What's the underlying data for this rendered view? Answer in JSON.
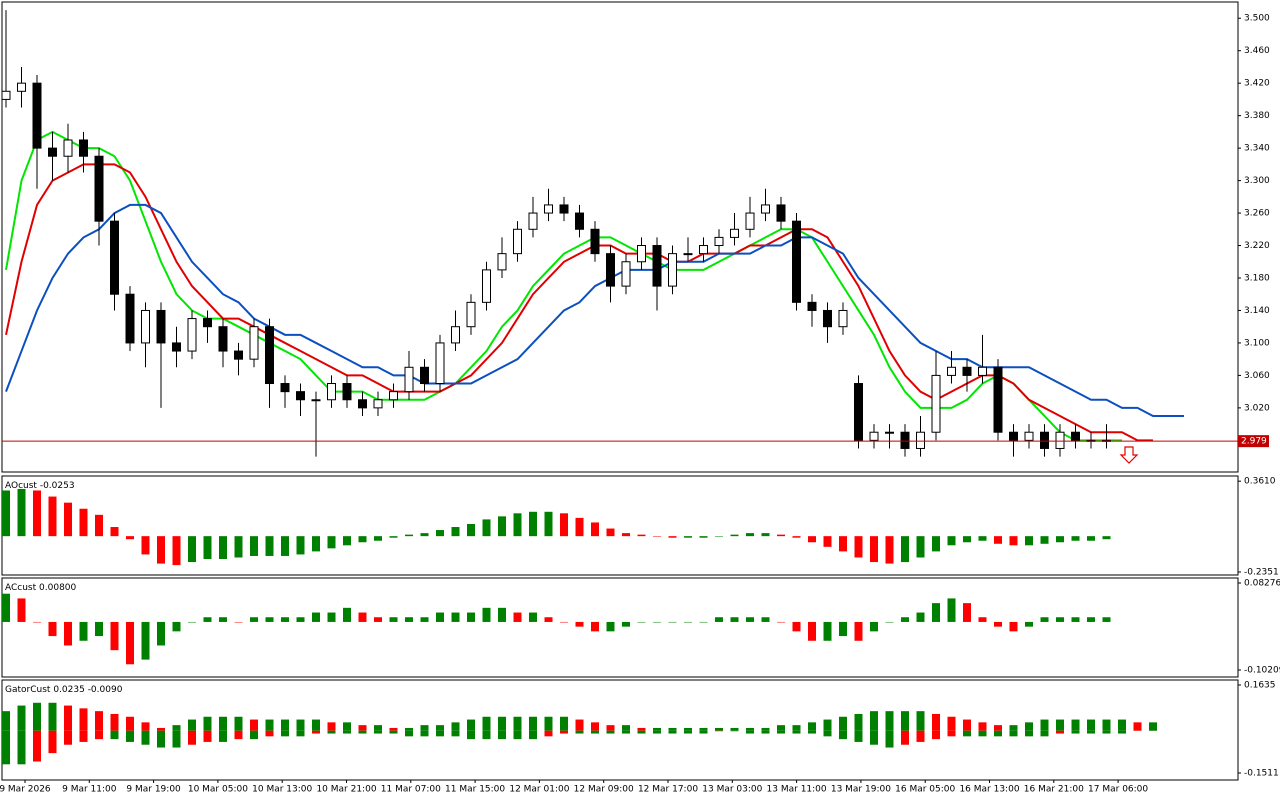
{
  "chart_data": [
    {
      "type": "candlestick",
      "ylim": [
        2.941,
        3.52
      ],
      "yticks": [
        {
          "value": 3.5,
          "label": "3.500"
        },
        {
          "value": 3.46,
          "label": "3.460"
        },
        {
          "value": 3.42,
          "label": "3.420"
        },
        {
          "value": 3.38,
          "label": "3.380"
        },
        {
          "value": 3.34,
          "label": "3.340"
        },
        {
          "value": 3.3,
          "label": "3.300"
        },
        {
          "value": 3.26,
          "label": "3.260"
        },
        {
          "value": 3.22,
          "label": "3.220"
        },
        {
          "value": 3.18,
          "label": "3.180"
        },
        {
          "value": 3.14,
          "label": "3.140"
        },
        {
          "value": 3.1,
          "label": "3.100"
        },
        {
          "value": 3.06,
          "label": "3.060"
        },
        {
          "value": 3.02,
          "label": "3.020"
        }
      ],
      "x_labels": [
        "9 Mar 2026",
        "9 Mar 11:00",
        "9 Mar 19:00",
        "10 Mar 05:00",
        "10 Mar 13:00",
        "10 Mar 21:00",
        "11 Mar 07:00",
        "11 Mar 15:00",
        "12 Mar 01:00",
        "12 Mar 09:00",
        "12 Mar 17:00",
        "13 Mar 03:00",
        "13 Mar 11:00",
        "13 Mar 19:00",
        "16 Mar 05:00",
        "16 Mar 13:00",
        "16 Mar 21:00",
        "17 Mar 06:00"
      ],
      "up_color": "#ffffff",
      "down_color": "#000000",
      "open": [
        3.4,
        3.41,
        3.42,
        3.34,
        3.33,
        3.35,
        3.33,
        3.25,
        3.16,
        3.1,
        3.14,
        3.1,
        3.09,
        3.13,
        3.12,
        3.09,
        3.08,
        3.12,
        3.05,
        3.04,
        3.03,
        3.03,
        3.05,
        3.03,
        3.02,
        3.03,
        3.04,
        3.07,
        3.05,
        3.1,
        3.12,
        3.15,
        3.19,
        3.21,
        3.24,
        3.26,
        3.27,
        3.26,
        3.24,
        3.21,
        3.17,
        3.2,
        3.22,
        3.17,
        3.21,
        3.21,
        3.22,
        3.23,
        3.24,
        3.26,
        3.27,
        3.25,
        3.15,
        3.14,
        3.12,
        3.05,
        2.98,
        2.99,
        2.99,
        2.97,
        2.99,
        3.06,
        3.07,
        3.06,
        3.07,
        2.99,
        2.98,
        2.99,
        2.97,
        2.99,
        2.98,
        2.98,
        null,
        null,
        null,
        null,
        null
      ],
      "high": [
        3.51,
        3.44,
        3.43,
        3.36,
        3.37,
        3.36,
        3.34,
        3.26,
        3.17,
        3.15,
        3.15,
        3.12,
        3.14,
        3.14,
        3.13,
        3.1,
        3.13,
        3.13,
        3.06,
        3.05,
        3.04,
        3.06,
        3.06,
        3.04,
        3.04,
        3.05,
        3.09,
        3.08,
        3.11,
        3.14,
        3.16,
        3.2,
        3.23,
        3.25,
        3.28,
        3.29,
        3.28,
        3.27,
        3.25,
        3.22,
        3.21,
        3.23,
        3.23,
        3.22,
        3.23,
        3.23,
        3.24,
        3.26,
        3.28,
        3.29,
        3.28,
        3.26,
        3.16,
        3.15,
        3.15,
        3.06,
        3.0,
        3.0,
        3.0,
        3.01,
        3.09,
        3.09,
        3.08,
        3.11,
        3.08,
        3.0,
        3.0,
        3.0,
        3.0,
        3.0,
        2.99,
        3.0,
        null,
        null,
        null,
        null,
        null
      ],
      "low": [
        3.39,
        3.39,
        3.29,
        3.3,
        3.31,
        3.31,
        3.22,
        3.14,
        3.09,
        3.07,
        3.02,
        3.07,
        3.08,
        3.1,
        3.07,
        3.06,
        3.07,
        3.02,
        3.02,
        3.01,
        2.96,
        3.02,
        3.02,
        3.01,
        3.01,
        3.02,
        3.03,
        3.04,
        3.04,
        3.09,
        3.11,
        3.14,
        3.18,
        3.2,
        3.23,
        3.25,
        3.25,
        3.23,
        3.2,
        3.15,
        3.16,
        3.19,
        3.14,
        3.16,
        3.2,
        3.2,
        3.21,
        3.22,
        3.23,
        3.25,
        3.24,
        3.14,
        3.12,
        3.1,
        3.11,
        2.97,
        2.97,
        2.97,
        2.96,
        2.96,
        2.98,
        3.05,
        3.04,
        3.05,
        2.98,
        2.96,
        2.97,
        2.96,
        2.96,
        2.97,
        2.97,
        2.97,
        null,
        null,
        null,
        null,
        null
      ],
      "close": [
        3.41,
        3.42,
        3.34,
        3.33,
        3.35,
        3.33,
        3.25,
        3.16,
        3.1,
        3.14,
        3.1,
        3.09,
        3.13,
        3.12,
        3.09,
        3.08,
        3.12,
        3.05,
        3.04,
        3.03,
        3.03,
        3.05,
        3.03,
        3.02,
        3.03,
        3.04,
        3.07,
        3.05,
        3.1,
        3.12,
        3.15,
        3.19,
        3.21,
        3.24,
        3.26,
        3.27,
        3.26,
        3.24,
        3.21,
        3.17,
        3.2,
        3.22,
        3.17,
        3.21,
        3.21,
        3.22,
        3.23,
        3.24,
        3.26,
        3.27,
        3.25,
        3.15,
        3.14,
        3.12,
        3.14,
        2.98,
        2.99,
        2.99,
        2.97,
        2.99,
        3.06,
        3.07,
        3.06,
        3.07,
        2.99,
        2.98,
        2.99,
        2.97,
        2.99,
        2.98,
        2.98,
        2.98,
        null,
        null,
        null,
        null,
        null
      ],
      "lines": [
        {
          "color": "#00e600",
          "values": [
            3.19,
            3.3,
            3.35,
            3.36,
            3.35,
            3.34,
            3.34,
            3.33,
            3.3,
            3.25,
            3.2,
            3.16,
            3.14,
            3.13,
            3.13,
            3.12,
            3.11,
            3.1,
            3.09,
            3.08,
            3.06,
            3.04,
            3.04,
            3.04,
            3.03,
            3.03,
            3.03,
            3.03,
            3.04,
            3.05,
            3.07,
            3.09,
            3.12,
            3.14,
            3.17,
            3.19,
            3.21,
            3.22,
            3.23,
            3.23,
            3.22,
            3.21,
            3.2,
            3.19,
            3.19,
            3.19,
            3.2,
            3.21,
            3.22,
            3.23,
            3.24,
            3.24,
            3.23,
            3.2,
            3.17,
            3.14,
            3.11,
            3.07,
            3.04,
            3.02,
            3.02,
            3.02,
            3.03,
            3.05,
            3.06,
            3.05,
            3.03,
            3.01,
            2.99,
            2.98,
            2.98,
            2.98,
            2.98,
            null,
            null,
            null,
            null
          ]
        },
        {
          "color": "#e00000",
          "values": [
            3.11,
            3.2,
            3.27,
            3.3,
            3.31,
            3.32,
            3.32,
            3.32,
            3.31,
            3.28,
            3.24,
            3.2,
            3.17,
            3.15,
            3.13,
            3.13,
            3.12,
            3.11,
            3.1,
            3.09,
            3.08,
            3.07,
            3.06,
            3.06,
            3.05,
            3.04,
            3.04,
            3.04,
            3.04,
            3.05,
            3.06,
            3.08,
            3.1,
            3.13,
            3.16,
            3.18,
            3.2,
            3.21,
            3.22,
            3.22,
            3.21,
            3.21,
            3.21,
            3.2,
            3.2,
            3.21,
            3.21,
            3.21,
            3.22,
            3.22,
            3.23,
            3.24,
            3.24,
            3.23,
            3.2,
            3.17,
            3.13,
            3.09,
            3.06,
            3.04,
            3.03,
            3.04,
            3.05,
            3.06,
            3.06,
            3.05,
            3.03,
            3.02,
            3.01,
            3.0,
            2.99,
            2.99,
            2.99,
            2.98,
            2.98,
            null,
            null
          ]
        },
        {
          "color": "#0b4fc0",
          "values": [
            3.04,
            3.09,
            3.14,
            3.18,
            3.21,
            3.23,
            3.24,
            3.26,
            3.27,
            3.27,
            3.26,
            3.23,
            3.2,
            3.18,
            3.16,
            3.15,
            3.13,
            3.12,
            3.11,
            3.11,
            3.1,
            3.09,
            3.08,
            3.07,
            3.07,
            3.06,
            3.06,
            3.05,
            3.05,
            3.05,
            3.05,
            3.06,
            3.07,
            3.08,
            3.1,
            3.12,
            3.14,
            3.15,
            3.17,
            3.18,
            3.19,
            3.19,
            3.19,
            3.2,
            3.2,
            3.2,
            3.21,
            3.21,
            3.21,
            3.22,
            3.22,
            3.23,
            3.23,
            3.22,
            3.21,
            3.18,
            3.16,
            3.14,
            3.12,
            3.1,
            3.09,
            3.08,
            3.08,
            3.07,
            3.07,
            3.07,
            3.07,
            3.06,
            3.05,
            3.04,
            3.03,
            3.03,
            3.02,
            3.02,
            3.01,
            3.01,
            3.01
          ]
        }
      ],
      "last_price": 2.979,
      "last_price_color": "#c00000"
    },
    {
      "type": "histogram",
      "title": "AOcust",
      "current_values": [
        -0.0253
      ],
      "ylim": [
        -0.255,
        0.395
      ],
      "yticks": [
        {
          "value": 0.361,
          "label": "0.3610"
        },
        -0.2351
      ],
      "up_color": "#008000",
      "down_color": "#ff0000",
      "series": [
        {
          "values": [
            0.3,
            0.31,
            0.3,
            0.26,
            0.22,
            0.18,
            0.14,
            0.06,
            -0.02,
            -0.12,
            -0.18,
            -0.19,
            -0.17,
            -0.15,
            -0.15,
            -0.14,
            -0.13,
            -0.13,
            -0.13,
            -0.12,
            -0.1,
            -0.08,
            -0.06,
            -0.04,
            -0.03,
            -0.01,
            0.01,
            0.02,
            0.04,
            0.06,
            0.08,
            0.11,
            0.13,
            0.15,
            0.16,
            0.16,
            0.15,
            0.12,
            0.09,
            0.05,
            0.02,
            0.01,
            0.0,
            -0.01,
            -0.01,
            -0.01,
            0.0,
            0.01,
            0.02,
            0.02,
            0.01,
            -0.01,
            -0.04,
            -0.07,
            -0.1,
            -0.14,
            -0.17,
            -0.18,
            -0.17,
            -0.14,
            -0.1,
            -0.06,
            -0.04,
            -0.03,
            -0.05,
            -0.06,
            -0.06,
            -0.05,
            -0.04,
            -0.03,
            -0.03,
            -0.02
          ]
        }
      ]
    },
    {
      "type": "histogram",
      "title": "ACcust",
      "current_values": [
        {
          "value": 0.008,
          "label": "0.00800"
        }
      ],
      "ylim": [
        -0.117,
        0.0934
      ],
      "yticks": [
        0.08276,
        -0.10209
      ],
      "up_color": "#008000",
      "down_color": "#ff0000",
      "series": [
        {
          "values": [
            0.06,
            0.05,
            0.0,
            -0.03,
            -0.05,
            -0.04,
            -0.03,
            -0.06,
            -0.09,
            -0.08,
            -0.05,
            -0.02,
            0.0,
            0.01,
            0.01,
            0.0,
            0.01,
            0.01,
            0.01,
            0.01,
            0.02,
            0.02,
            0.03,
            0.02,
            0.01,
            0.01,
            0.01,
            0.01,
            0.02,
            0.02,
            0.02,
            0.03,
            0.03,
            0.02,
            0.02,
            0.01,
            0.0,
            -0.01,
            -0.02,
            -0.02,
            -0.01,
            0.0,
            0.0,
            0.0,
            0.0,
            0.0,
            0.01,
            0.01,
            0.01,
            0.01,
            0.0,
            -0.02,
            -0.04,
            -0.04,
            -0.03,
            -0.04,
            -0.02,
            0.0,
            0.01,
            0.02,
            0.04,
            0.05,
            0.04,
            0.01,
            -0.01,
            -0.02,
            -0.01,
            0.01,
            0.01,
            0.01,
            0.01,
            0.01
          ]
        }
      ]
    },
    {
      "type": "gator",
      "title": "GatorCust",
      "current_values": [
        0.0235,
        {
          "value": -0.009,
          "label": "-0.0090"
        }
      ],
      "ylim": [
        -0.1761,
        0.1814
      ],
      "yticks": [
        0.1635,
        -0.1511
      ],
      "up_color": "#008000",
      "down_color": "#ff0000",
      "series": [
        {
          "values": [
            0.07,
            0.09,
            0.1,
            0.1,
            0.09,
            0.08,
            0.07,
            0.06,
            0.05,
            0.03,
            0.01,
            0.02,
            0.04,
            0.05,
            0.05,
            0.05,
            0.04,
            0.04,
            0.04,
            0.04,
            0.04,
            0.03,
            0.03,
            0.02,
            0.02,
            0.01,
            0.01,
            0.02,
            0.02,
            0.03,
            0.04,
            0.05,
            0.05,
            0.05,
            0.05,
            0.05,
            0.05,
            0.04,
            0.03,
            0.02,
            0.02,
            0.01,
            0.01,
            0.01,
            0.01,
            0.01,
            0.01,
            0.01,
            0.01,
            0.01,
            0.02,
            0.02,
            0.03,
            0.04,
            0.05,
            0.06,
            0.07,
            0.07,
            0.07,
            0.07,
            0.06,
            0.05,
            0.04,
            0.03,
            0.02,
            0.02,
            0.03,
            0.04,
            0.04,
            0.04,
            0.04,
            0.04,
            0.04,
            0.03,
            0.03
          ]
        },
        {
          "values": [
            -0.12,
            -0.12,
            -0.11,
            -0.08,
            -0.05,
            -0.04,
            -0.03,
            -0.03,
            -0.04,
            -0.05,
            -0.06,
            -0.06,
            -0.05,
            -0.04,
            -0.04,
            -0.03,
            -0.03,
            -0.02,
            -0.02,
            -0.02,
            -0.01,
            -0.01,
            -0.01,
            -0.01,
            -0.01,
            -0.01,
            -0.02,
            -0.02,
            -0.02,
            -0.02,
            -0.03,
            -0.03,
            -0.03,
            -0.03,
            -0.03,
            -0.02,
            -0.01,
            -0.01,
            -0.01,
            -0.01,
            -0.01,
            -0.01,
            -0.01,
            -0.01,
            -0.01,
            -0.01,
            0,
            0,
            -0.01,
            -0.01,
            -0.01,
            -0.01,
            -0.01,
            -0.02,
            -0.03,
            -0.04,
            -0.05,
            -0.06,
            -0.05,
            -0.04,
            -0.03,
            -0.02,
            -0.02,
            -0.02,
            -0.02,
            -0.02,
            -0.02,
            -0.02,
            -0.01,
            -0.01,
            -0.01,
            -0.01,
            -0.01,
            null,
            null
          ]
        }
      ]
    }
  ]
}
